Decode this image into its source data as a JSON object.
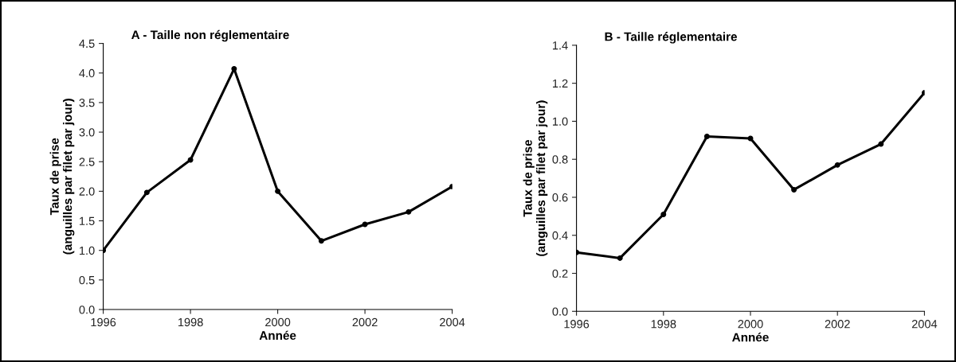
{
  "chart_data": [
    {
      "type": "line",
      "title": "A - Taille non réglementaire",
      "xlabel": "Année",
      "ylabel": "Taux de prise\n(anguilles par filet par jour)",
      "x": [
        1996,
        1997,
        1998,
        1999,
        2000,
        2001,
        2002,
        2003,
        2004
      ],
      "series": [
        {
          "color": "#000000",
          "values": [
            1.0,
            1.98,
            2.53,
            4.07,
            2.0,
            1.16,
            1.44,
            1.65,
            2.08
          ]
        }
      ],
      "xlim": [
        1996,
        2004
      ],
      "xticks": [
        1996,
        1998,
        2000,
        2002,
        2004
      ],
      "ylim": [
        0,
        4.5
      ],
      "yticks": [
        {
          "value": 0,
          "label": "0.0"
        },
        0.5,
        {
          "value": 1,
          "label": "1.0"
        },
        1.5,
        {
          "value": 2,
          "label": "2.0"
        },
        2.5,
        {
          "value": 3,
          "label": "3.0"
        },
        3.5,
        {
          "value": 4,
          "label": "4.0"
        },
        4.5
      ],
      "grid": false,
      "marker": "circle",
      "line_style": "solid"
    },
    {
      "type": "line",
      "title": "B - Taille réglementaire",
      "xlabel": "Année",
      "ylabel": "Taux de prise\n(anguilles par filet par jour)",
      "x": [
        1996,
        1997,
        1998,
        1999,
        2000,
        2001,
        2002,
        2003,
        2004
      ],
      "series": [
        {
          "color": "#000000",
          "values": [
            0.31,
            0.28,
            0.51,
            0.92,
            0.91,
            0.64,
            0.77,
            0.88,
            1.15
          ]
        }
      ],
      "xlim": [
        1996,
        2004
      ],
      "xticks": [
        1996,
        1998,
        2000,
        2002,
        2004
      ],
      "ylim": [
        0,
        1.4
      ],
      "yticks": [
        {
          "value": 0,
          "label": "0.0"
        },
        0.2,
        0.4,
        0.6,
        0.8,
        {
          "value": 1,
          "label": "1.0"
        },
        1.2,
        1.4
      ],
      "grid": false,
      "marker": "circle",
      "line_style": "solid"
    }
  ]
}
